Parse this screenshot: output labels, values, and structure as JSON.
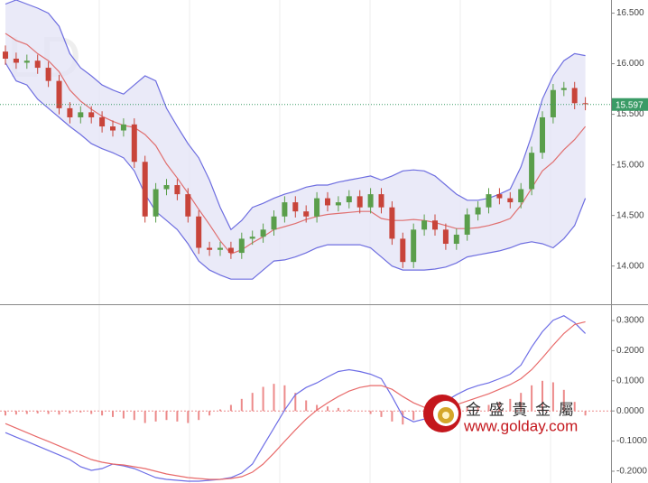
{
  "chart_data": [
    {
      "type": "candlestick",
      "open": [
        16.12,
        16.05,
        16.01,
        16.03,
        15.96,
        15.83,
        15.56,
        15.47,
        15.52,
        15.47,
        15.38,
        15.34,
        15.4,
        15.03,
        14.49,
        14.76,
        14.8,
        14.71,
        14.49,
        14.18,
        14.16,
        14.18,
        14.13,
        14.27,
        14.29,
        14.36,
        14.49,
        14.63,
        14.54,
        14.49,
        14.67,
        14.6,
        14.63,
        14.69,
        14.58,
        14.71,
        14.58,
        14.27,
        14.04,
        14.36,
        14.45,
        14.36,
        14.22,
        14.31,
        14.51,
        14.58,
        14.71,
        14.67,
        14.63,
        14.76,
        15.12,
        15.47,
        15.74,
        15.76,
        15.61
      ],
      "high": [
        16.18,
        16.11,
        16.09,
        16.09,
        16.02,
        15.89,
        15.62,
        15.58,
        15.58,
        15.53,
        15.44,
        15.46,
        15.46,
        15.09,
        14.82,
        14.86,
        14.86,
        14.77,
        14.55,
        14.24,
        14.24,
        14.24,
        14.33,
        14.35,
        14.42,
        14.55,
        14.69,
        14.69,
        14.6,
        14.73,
        14.73,
        14.69,
        14.75,
        14.75,
        14.77,
        14.77,
        14.64,
        14.33,
        14.42,
        14.51,
        14.51,
        14.42,
        14.37,
        14.57,
        14.64,
        14.77,
        14.77,
        14.73,
        14.82,
        15.18,
        15.53,
        15.8,
        15.82,
        15.82,
        15.67
      ],
      "low": [
        15.99,
        15.95,
        15.95,
        15.9,
        15.77,
        15.5,
        15.41,
        15.41,
        15.41,
        15.32,
        15.28,
        15.28,
        14.97,
        14.43,
        14.43,
        14.7,
        14.65,
        14.43,
        14.12,
        14.1,
        14.1,
        14.07,
        14.07,
        14.21,
        14.23,
        14.3,
        14.43,
        14.48,
        14.43,
        14.43,
        14.54,
        14.54,
        14.57,
        14.52,
        14.52,
        14.52,
        14.21,
        13.98,
        13.98,
        14.3,
        14.3,
        14.16,
        14.16,
        14.25,
        14.45,
        14.52,
        14.61,
        14.57,
        14.57,
        14.7,
        15.06,
        15.41,
        15.68,
        15.55,
        15.54
      ],
      "close": [
        16.05,
        16.01,
        16.03,
        15.96,
        15.83,
        15.56,
        15.47,
        15.52,
        15.47,
        15.38,
        15.34,
        15.4,
        15.03,
        14.49,
        14.76,
        14.8,
        14.71,
        14.49,
        14.18,
        14.16,
        14.18,
        14.13,
        14.27,
        14.29,
        14.36,
        14.49,
        14.63,
        14.54,
        14.49,
        14.67,
        14.6,
        14.63,
        14.69,
        14.58,
        14.71,
        14.58,
        14.27,
        14.04,
        14.36,
        14.45,
        14.36,
        14.22,
        14.31,
        14.51,
        14.58,
        14.71,
        14.67,
        14.63,
        14.76,
        15.12,
        15.47,
        15.74,
        15.76,
        15.61,
        15.6
      ],
      "up_color": "#5a9e4b",
      "down_color": "#c8443a",
      "series": [
        {
          "color": "#6e6ee0",
          "values": [
            16.59,
            16.63,
            16.59,
            16.55,
            16.5,
            16.37,
            16.1,
            15.96,
            15.88,
            15.79,
            15.74,
            15.7,
            15.79,
            15.88,
            15.83,
            15.56,
            15.38,
            15.21,
            15.07,
            14.85,
            14.58,
            14.36,
            14.45,
            14.58,
            14.62,
            14.67,
            14.71,
            14.74,
            14.78,
            14.8,
            14.8,
            14.83,
            14.85,
            14.87,
            14.89,
            14.85,
            14.89,
            14.94,
            14.95,
            14.94,
            14.89,
            14.8,
            14.71,
            14.65,
            14.65,
            14.67,
            14.71,
            14.76,
            14.98,
            15.29,
            15.65,
            15.88,
            16.03,
            16.1,
            16.08
          ]
        },
        {
          "color": "#e07070",
          "values": [
            16.3,
            16.23,
            16.19,
            16.1,
            16.03,
            15.92,
            15.74,
            15.63,
            15.55,
            15.48,
            15.43,
            15.39,
            15.37,
            15.3,
            15.19,
            15.01,
            14.87,
            14.72,
            14.56,
            14.41,
            14.25,
            14.12,
            14.16,
            14.23,
            14.29,
            14.36,
            14.39,
            14.42,
            14.46,
            14.49,
            14.51,
            14.52,
            14.53,
            14.54,
            14.54,
            14.47,
            14.45,
            14.45,
            14.46,
            14.45,
            14.43,
            14.4,
            14.37,
            14.37,
            14.38,
            14.4,
            14.43,
            14.47,
            14.6,
            14.77,
            14.94,
            15.03,
            15.15,
            15.25,
            15.38
          ]
        },
        {
          "color": "#6e6ee0",
          "values": [
            16.01,
            15.83,
            15.79,
            15.65,
            15.56,
            15.47,
            15.38,
            15.3,
            15.21,
            15.16,
            15.12,
            15.07,
            14.94,
            14.71,
            14.54,
            14.45,
            14.36,
            14.22,
            14.05,
            13.96,
            13.91,
            13.87,
            13.87,
            13.87,
            13.96,
            14.05,
            14.06,
            14.09,
            14.13,
            14.18,
            14.21,
            14.21,
            14.21,
            14.21,
            14.18,
            14.09,
            14.0,
            13.96,
            13.96,
            13.96,
            13.97,
            13.99,
            14.03,
            14.09,
            14.11,
            14.13,
            14.15,
            14.18,
            14.22,
            14.24,
            14.22,
            14.18,
            14.27,
            14.4,
            14.67
          ]
        }
      ],
      "band_fill": "#e3e3f6",
      "last_price": {
        "value": 15.597,
        "label": "15.597"
      },
      "last_price_color": "#3a9b66",
      "ylim": [
        13.64,
        16.63
      ],
      "yticks": [
        {
          "value": 14.0,
          "label": "14.000"
        },
        {
          "value": 14.5,
          "label": "14.500"
        },
        {
          "value": 15.0,
          "label": "15.000"
        },
        {
          "value": 15.5,
          "label": "15.500"
        },
        {
          "value": 16.0,
          "label": "16.000"
        },
        {
          "value": 16.5,
          "label": "16.500"
        }
      ],
      "grid": false
    },
    {
      "type": "macd",
      "series": [
        {
          "color": "#6e6ee6",
          "values": [
            -0.072,
            -0.087,
            -0.101,
            -0.116,
            -0.131,
            -0.146,
            -0.161,
            -0.185,
            -0.197,
            -0.191,
            -0.176,
            -0.182,
            -0.191,
            -0.206,
            -0.221,
            -0.227,
            -0.23,
            -0.233,
            -0.233,
            -0.23,
            -0.227,
            -0.221,
            -0.206,
            -0.176,
            -0.116,
            -0.057,
            0.003,
            0.054,
            0.078,
            0.093,
            0.113,
            0.131,
            0.137,
            0.131,
            0.122,
            0.107,
            0.048,
            -0.018,
            -0.036,
            -0.027,
            0.003,
            0.033,
            0.054,
            0.072,
            0.084,
            0.093,
            0.107,
            0.122,
            0.152,
            0.212,
            0.263,
            0.301,
            0.316,
            0.293,
            0.257
          ]
        },
        {
          "color": "#e86a6a",
          "values": [
            -0.042,
            -0.057,
            -0.072,
            -0.087,
            -0.101,
            -0.116,
            -0.131,
            -0.146,
            -0.161,
            -0.17,
            -0.176,
            -0.179,
            -0.185,
            -0.191,
            -0.2,
            -0.209,
            -0.215,
            -0.221,
            -0.224,
            -0.227,
            -0.227,
            -0.224,
            -0.218,
            -0.203,
            -0.176,
            -0.14,
            -0.101,
            -0.063,
            -0.027,
            0.003,
            0.027,
            0.048,
            0.066,
            0.078,
            0.084,
            0.084,
            0.072,
            0.048,
            0.027,
            0.012,
            0.009,
            0.012,
            0.021,
            0.033,
            0.045,
            0.057,
            0.072,
            0.087,
            0.107,
            0.137,
            0.176,
            0.218,
            0.257,
            0.287,
            0.296
          ]
        }
      ],
      "histogram": {
        "color": "#ec8a8a",
        "values": [
          -0.015,
          -0.012,
          -0.01,
          -0.008,
          -0.01,
          -0.012,
          -0.008,
          -0.005,
          -0.01,
          -0.015,
          -0.02,
          -0.025,
          -0.03,
          -0.04,
          -0.035,
          -0.03,
          -0.035,
          -0.04,
          -0.03,
          -0.015,
          0.005,
          0.02,
          0.04,
          0.06,
          0.08,
          0.09,
          0.085,
          0.06,
          0.035,
          0.02,
          0.015,
          0.01,
          0.005,
          0.0,
          -0.01,
          -0.02,
          -0.035,
          -0.045,
          -0.03,
          -0.02,
          -0.01,
          0.005,
          0.01,
          0.015,
          0.015,
          0.02,
          0.03,
          0.04,
          0.06,
          0.085,
          0.1,
          0.095,
          0.07,
          0.03,
          -0.015
        ]
      },
      "ylim": [
        -0.239,
        0.345
      ],
      "yticks": [
        {
          "value": 0.3,
          "label": "0.3000"
        },
        {
          "value": 0.2,
          "label": "0.2000"
        },
        {
          "value": 0.1,
          "label": "0.1000"
        },
        {
          "value": 0,
          "label": "0.0000"
        },
        {
          "value": -0.1,
          "label": "-0.1000"
        },
        {
          "value": -0.2,
          "label": "-0.2000"
        }
      ],
      "grid": false
    }
  ],
  "background_text": "LD",
  "watermark": {
    "brand": "金 盛 貴 金 屬",
    "url": "www.golday.com"
  }
}
